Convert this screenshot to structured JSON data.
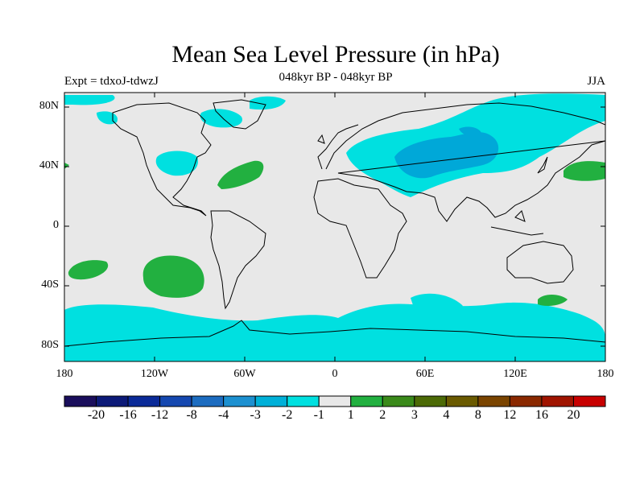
{
  "title": "Mean Sea Level Pressure (in hPa)",
  "subtitle": "048kyr BP - 048kyr BP",
  "expt_label": "Expt = tdxoJ-tdwzJ",
  "season": "JJA",
  "colors": {
    "ocean_land_background": "#e8e8e8",
    "neg_1_to_2": "#00e0e0",
    "neg_2_to_3": "#00a8d8",
    "pos_1_to_2": "#22b040",
    "coastline": "#000000"
  },
  "chart_data": {
    "type": "heatmap",
    "projection": "cylindrical-equidistant",
    "xlim": [
      -180,
      180
    ],
    "ylim": [
      -90,
      90
    ],
    "lat_ticks": [
      "80N",
      "40N",
      "0",
      "40S",
      "80S"
    ],
    "lon_ticks": [
      "180",
      "120W",
      "60W",
      "0",
      "60E",
      "120E",
      "180"
    ],
    "colorbar": {
      "colors": [
        "#1a0e5c",
        "#0c1a78",
        "#0a2a98",
        "#1548b0",
        "#1c6cc0",
        "#1c90d0",
        "#00b0d8",
        "#00e0e0",
        "#e8e8e8",
        "#22b040",
        "#3a8a1a",
        "#4c6a06",
        "#6a5a00",
        "#7a4400",
        "#8a2800",
        "#a01400",
        "#c80000"
      ],
      "labels": [
        "-20",
        "-16",
        "-12",
        "-8",
        "-4",
        "-3",
        "-2",
        "-1",
        "1",
        "2",
        "3",
        "4",
        "8",
        "12",
        "16",
        "20"
      ]
    }
  }
}
